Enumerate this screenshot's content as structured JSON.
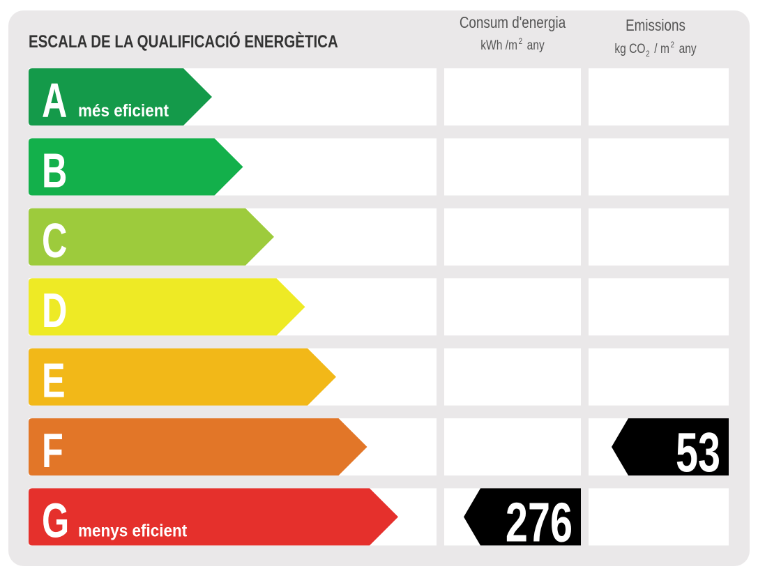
{
  "title": "ESCALA DE LA QUALIFICACIÓ ENERGÈTICA",
  "columns": [
    {
      "title": "Consum d'energia",
      "unit": [
        {
          "text": "kWh /m"
        },
        {
          "sup": "2"
        },
        {
          "text": "any"
        }
      ],
      "rating": {
        "value": 276,
        "class": "G"
      }
    },
    {
      "title": "Emissions",
      "unit": [
        {
          "text": "kg CO"
        },
        {
          "sub": "2"
        },
        {
          "text": "/ m"
        },
        {
          "sup": "2"
        },
        {
          "text": "any"
        }
      ],
      "rating": {
        "value": 53,
        "class": "F"
      }
    }
  ],
  "rows": [
    {
      "letter": "A",
      "note": "més eficient",
      "color": "#149a4a"
    },
    {
      "letter": "B",
      "color": "#13b04b"
    },
    {
      "letter": "C",
      "color": "#9dcb3c"
    },
    {
      "letter": "D",
      "color": "#eeea25"
    },
    {
      "letter": "E",
      "color": "#f2b818"
    },
    {
      "letter": "F",
      "color": "#e27628"
    },
    {
      "letter": "G",
      "note": "menys eficient",
      "color": "#e5302c"
    }
  ]
}
